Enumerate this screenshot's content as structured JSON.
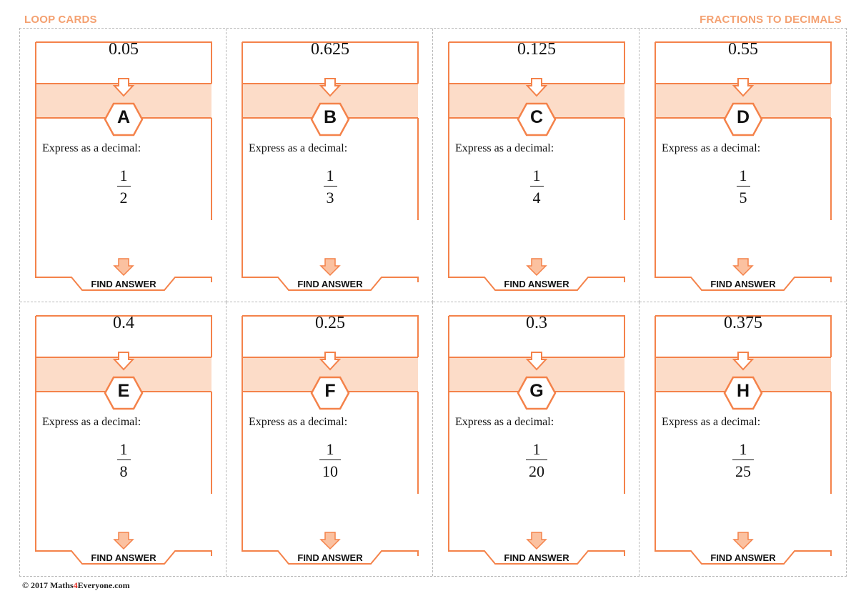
{
  "header": {
    "left_title": "LOOP CARDS",
    "right_title": "FRACTIONS TO DECIMALS"
  },
  "cards": [
    {
      "answer": "0.05",
      "letter": "A",
      "question": "Express as a decimal:",
      "numerator": "1",
      "denominator": "2",
      "footer": "FIND ANSWER"
    },
    {
      "answer": "0.625",
      "letter": "B",
      "question": "Express as a decimal:",
      "numerator": "1",
      "denominator": "3",
      "footer": "FIND ANSWER"
    },
    {
      "answer": "0.125",
      "letter": "C",
      "question": "Express as a decimal:",
      "numerator": "1",
      "denominator": "4",
      "footer": "FIND ANSWER"
    },
    {
      "answer": "0.55",
      "letter": "D",
      "question": "Express as a decimal:",
      "numerator": "1",
      "denominator": "5",
      "footer": "FIND ANSWER"
    },
    {
      "answer": "0.4",
      "letter": "E",
      "question": "Express as a decimal:",
      "numerator": "1",
      "denominator": "8",
      "footer": "FIND ANSWER"
    },
    {
      "answer": "0.25",
      "letter": "F",
      "question": "Express as a decimal:",
      "numerator": "1",
      "denominator": "10",
      "footer": "FIND ANSWER"
    },
    {
      "answer": "0.3",
      "letter": "G",
      "question": "Express as a decimal:",
      "numerator": "1",
      "denominator": "20",
      "footer": "FIND ANSWER"
    },
    {
      "answer": "0.375",
      "letter": "H",
      "question": "Express as a decimal:",
      "numerator": "1",
      "denominator": "25",
      "footer": "FIND ANSWER"
    }
  ],
  "footer": {
    "copyright_prefix": "© 2017 Maths",
    "copyright_highlight": "4",
    "copyright_suffix": "Everyone.com"
  },
  "colors": {
    "accent": "#f4824a",
    "band": "#fcdcc8",
    "header_text": "#f4a070",
    "brand_red": "#e0241b"
  }
}
